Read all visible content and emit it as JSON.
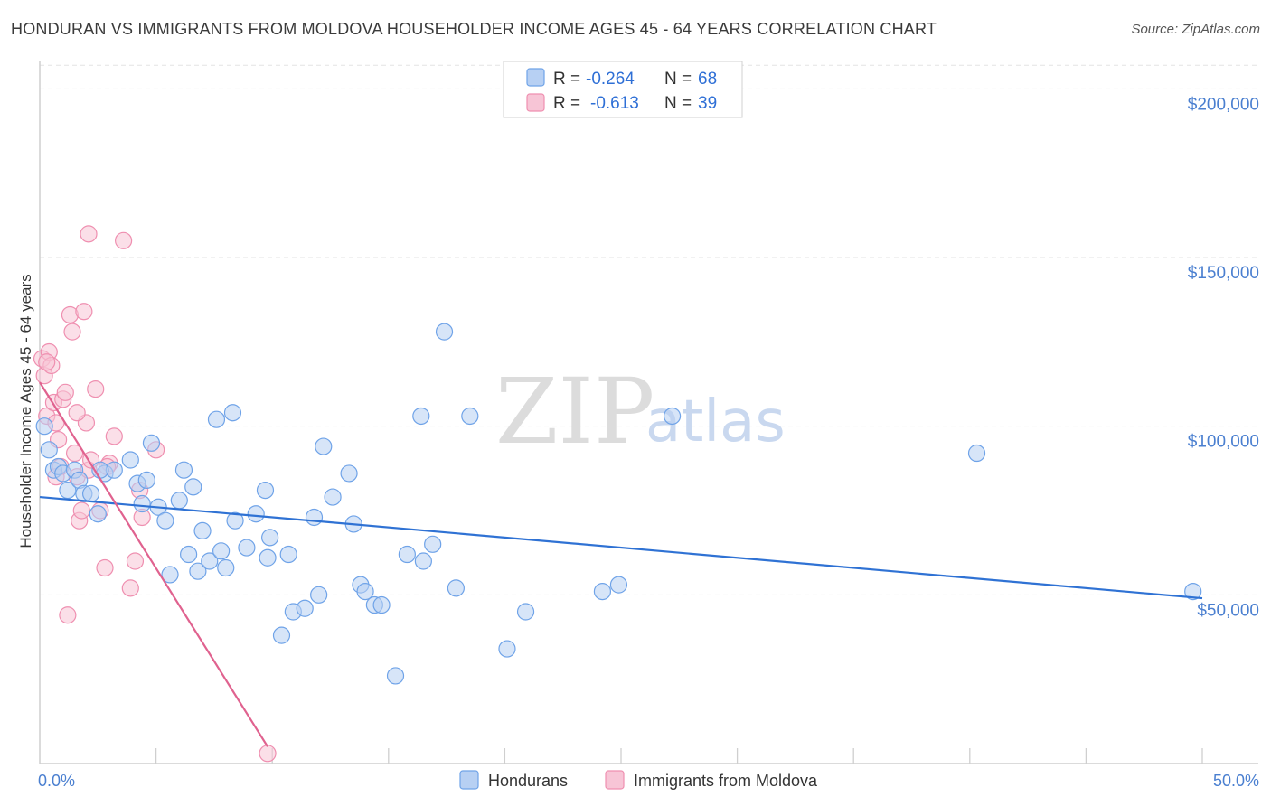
{
  "title": "HONDURAN VS IMMIGRANTS FROM MOLDOVA HOUSEHOLDER INCOME AGES 45 - 64 YEARS CORRELATION CHART",
  "source": "Source: ZipAtlas.com",
  "watermark": {
    "zip": "ZIP",
    "atlas": "atlas"
  },
  "colors": {
    "blue": "#6fa3e8",
    "blue_fill": "#b7d0f3",
    "blue_line": "#2f72d4",
    "pink": "#ef8fb0",
    "pink_fill": "#f7c5d6",
    "pink_line": "#e0628f",
    "axis_text": "#4a7fd0",
    "grid": "#e3e3e3"
  },
  "legend": {
    "rows": [
      {
        "r_label": "R =",
        "r_value": "-0.264",
        "n_label": "N =",
        "n_value": "68"
      },
      {
        "r_label": "R =",
        "r_value": "-0.613",
        "n_label": "N =",
        "n_value": "39"
      }
    ]
  },
  "chart_data": {
    "type": "scatter",
    "title": "HONDURAN VS IMMIGRANTS FROM MOLDOVA HOUSEHOLDER INCOME AGES 45 - 64 YEARS CORRELATION CHART",
    "xlabel": "",
    "ylabel": "Householder Income Ages 45 - 64 years",
    "xlim": [
      0,
      50
    ],
    "ylim": [
      0,
      210000
    ],
    "x_tick_labels": [
      "0.0%",
      "50.0%"
    ],
    "y_ticks": [
      50000,
      100000,
      150000,
      200000
    ],
    "y_tick_labels": [
      "$50,000",
      "$100,000",
      "$150,000",
      "$200,000"
    ],
    "grid": true,
    "legend_position": "top-center",
    "series": [
      {
        "name": "Hondurans",
        "r": -0.264,
        "n": 68,
        "trend": {
          "x": [
            0,
            50
          ],
          "y": [
            79000,
            49000
          ]
        },
        "points": [
          [
            0.2,
            100000
          ],
          [
            0.4,
            93000
          ],
          [
            0.6,
            87000
          ],
          [
            0.8,
            88000
          ],
          [
            1.0,
            86000
          ],
          [
            1.2,
            81000
          ],
          [
            1.5,
            87000
          ],
          [
            1.7,
            84000
          ],
          [
            1.9,
            80000
          ],
          [
            2.2,
            80000
          ],
          [
            2.5,
            74000
          ],
          [
            2.8,
            86000
          ],
          [
            3.2,
            87000
          ],
          [
            3.9,
            90000
          ],
          [
            4.2,
            83000
          ],
          [
            4.4,
            77000
          ],
          [
            4.6,
            84000
          ],
          [
            4.8,
            95000
          ],
          [
            5.1,
            76000
          ],
          [
            5.4,
            72000
          ],
          [
            5.6,
            56000
          ],
          [
            6.0,
            78000
          ],
          [
            6.2,
            87000
          ],
          [
            6.4,
            62000
          ],
          [
            6.6,
            82000
          ],
          [
            6.8,
            57000
          ],
          [
            7.0,
            69000
          ],
          [
            7.3,
            60000
          ],
          [
            7.6,
            102000
          ],
          [
            7.8,
            63000
          ],
          [
            8.0,
            58000
          ],
          [
            8.3,
            104000
          ],
          [
            8.4,
            72000
          ],
          [
            8.9,
            64000
          ],
          [
            9.3,
            74000
          ],
          [
            9.7,
            81000
          ],
          [
            9.8,
            61000
          ],
          [
            9.9,
            67000
          ],
          [
            10.4,
            38000
          ],
          [
            10.7,
            62000
          ],
          [
            10.9,
            45000
          ],
          [
            11.4,
            46000
          ],
          [
            11.8,
            73000
          ],
          [
            12.0,
            50000
          ],
          [
            12.2,
            94000
          ],
          [
            12.6,
            79000
          ],
          [
            13.3,
            86000
          ],
          [
            13.5,
            71000
          ],
          [
            13.8,
            53000
          ],
          [
            14.0,
            51000
          ],
          [
            14.4,
            47000
          ],
          [
            14.7,
            47000
          ],
          [
            15.3,
            26000
          ],
          [
            15.8,
            62000
          ],
          [
            16.4,
            103000
          ],
          [
            16.5,
            60000
          ],
          [
            16.9,
            65000
          ],
          [
            17.4,
            128000
          ],
          [
            17.9,
            52000
          ],
          [
            18.5,
            103000
          ],
          [
            20.1,
            34000
          ],
          [
            20.9,
            45000
          ],
          [
            24.2,
            51000
          ],
          [
            24.9,
            53000
          ],
          [
            27.2,
            103000
          ],
          [
            40.3,
            92000
          ],
          [
            49.6,
            51000
          ],
          [
            2.6,
            87000
          ]
        ]
      },
      {
        "name": "Immigrants from Moldova",
        "r": -0.613,
        "n": 39,
        "trend": {
          "x": [
            0,
            9.8
          ],
          "y": [
            113000,
            5000
          ]
        },
        "points": [
          [
            0.1,
            120000
          ],
          [
            0.2,
            115000
          ],
          [
            0.3,
            103000
          ],
          [
            0.4,
            122000
          ],
          [
            0.5,
            118000
          ],
          [
            0.6,
            107000
          ],
          [
            0.7,
            101000
          ],
          [
            0.8,
            96000
          ],
          [
            0.9,
            88000
          ],
          [
            1.0,
            108000
          ],
          [
            1.1,
            110000
          ],
          [
            1.3,
            133000
          ],
          [
            1.4,
            128000
          ],
          [
            1.5,
            92000
          ],
          [
            1.6,
            85000
          ],
          [
            1.7,
            72000
          ],
          [
            1.8,
            75000
          ],
          [
            1.9,
            134000
          ],
          [
            2.0,
            101000
          ],
          [
            2.1,
            87000
          ],
          [
            2.2,
            90000
          ],
          [
            2.4,
            111000
          ],
          [
            2.6,
            75000
          ],
          [
            2.8,
            58000
          ],
          [
            3.0,
            89000
          ],
          [
            3.2,
            97000
          ],
          [
            3.6,
            155000
          ],
          [
            3.9,
            52000
          ],
          [
            4.1,
            60000
          ],
          [
            4.3,
            81000
          ],
          [
            4.4,
            73000
          ],
          [
            5.0,
            93000
          ],
          [
            1.2,
            44000
          ],
          [
            2.1,
            157000
          ],
          [
            0.3,
            119000
          ],
          [
            0.7,
            85000
          ],
          [
            1.6,
            104000
          ],
          [
            2.9,
            88000
          ],
          [
            9.8,
            3000
          ]
        ]
      }
    ]
  },
  "bottom_legend": {
    "items": [
      "Hondurans",
      "Immigrants from Moldova"
    ]
  }
}
